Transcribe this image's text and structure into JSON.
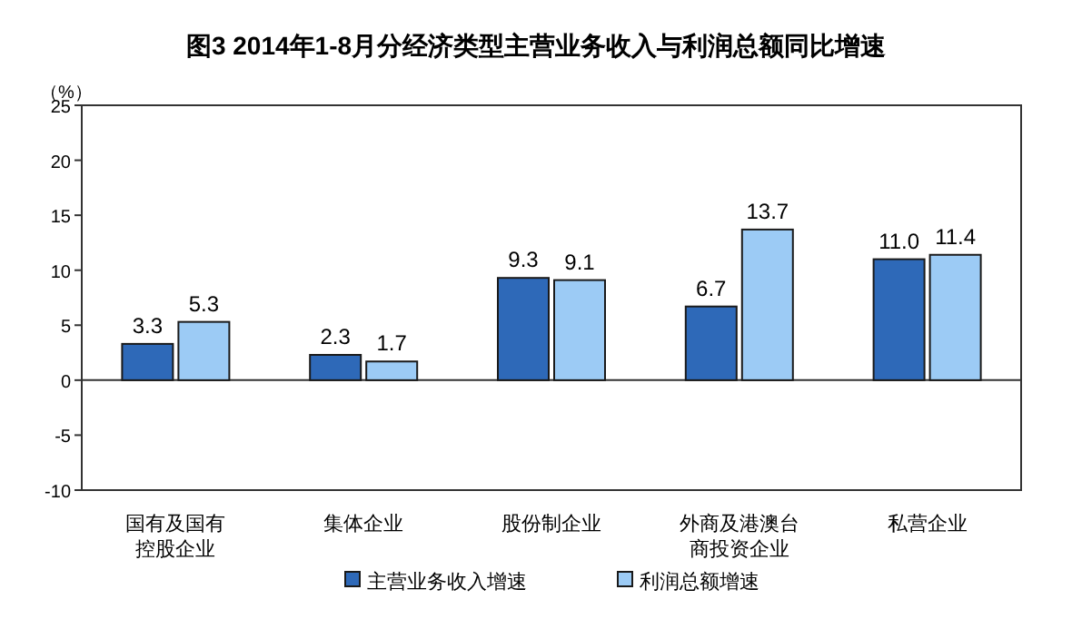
{
  "chart_data": {
    "type": "bar",
    "title": "图3  2014年1-8月分经济类型主营业务收入与利润总额同比增速",
    "ylabel": "（%）",
    "categories": [
      "国有及国有控股企业",
      "集体企业",
      "股份制企业",
      "外商及港澳台商投资企业",
      "私营企业"
    ],
    "series": [
      {
        "name": "主营业务收入增速",
        "color": "#2e69b8",
        "values": [
          3.3,
          2.3,
          9.3,
          6.7,
          11.0
        ],
        "value_labels": [
          "3.3",
          "2.3",
          "9.3",
          "6.7",
          "11.0"
        ]
      },
      {
        "name": "利润总额增速",
        "color": "#9ccbf5",
        "values": [
          5.3,
          1.7,
          9.1,
          13.7,
          11.4
        ],
        "value_labels": [
          "5.3",
          "1.7",
          "9.1",
          "13.7",
          "11.4"
        ]
      }
    ],
    "ylim": [
      -10,
      25
    ],
    "yticks": [
      -10,
      -5,
      0,
      5,
      10,
      15,
      20,
      25
    ],
    "legend": "bottom"
  }
}
